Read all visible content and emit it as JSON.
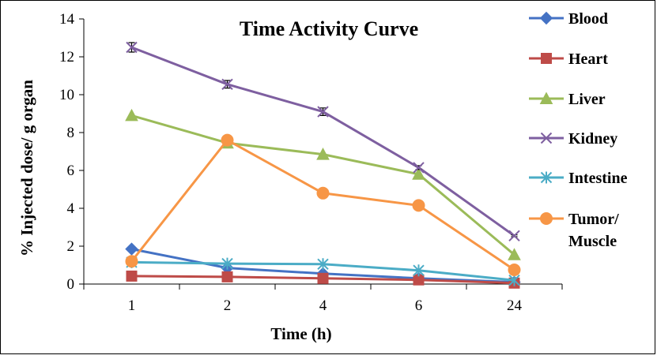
{
  "chart_data": {
    "type": "line",
    "title": "Time Activity Curve",
    "xlabel": "Time (h)",
    "ylabel": "% Injected dose/ g organ",
    "categories": [
      "1",
      "2",
      "4",
      "6",
      "24"
    ],
    "ylim": [
      0,
      14
    ],
    "yticks": [
      0,
      2,
      4,
      6,
      8,
      10,
      12,
      14
    ],
    "legend_position": "right",
    "grid": false,
    "series": [
      {
        "name": "Blood",
        "marker": "diamond",
        "color": "#4472c4",
        "values": [
          1.85,
          0.85,
          0.55,
          0.3,
          0.1
        ],
        "errors": [
          0,
          0,
          0,
          0,
          0
        ]
      },
      {
        "name": "Heart",
        "marker": "square",
        "color": "#be4b48",
        "values": [
          0.42,
          0.38,
          0.3,
          0.22,
          0.05
        ],
        "errors": [
          0,
          0,
          0,
          0,
          0
        ]
      },
      {
        "name": "Liver",
        "marker": "triangle",
        "color": "#9bbb59",
        "values": [
          8.9,
          7.45,
          6.85,
          5.8,
          1.55
        ],
        "errors": [
          0,
          0,
          0,
          0,
          0
        ]
      },
      {
        "name": "Kidney",
        "marker": "x",
        "color": "#7e5fa0",
        "values": [
          12.5,
          10.55,
          9.1,
          6.15,
          2.55
        ],
        "errors": [
          0.25,
          0.2,
          0.2,
          0.1,
          0.05
        ]
      },
      {
        "name": "Intestine",
        "marker": "asterisk",
        "color": "#4bacc6",
        "values": [
          1.15,
          1.08,
          1.05,
          0.72,
          0.2
        ],
        "errors": [
          0,
          0,
          0,
          0,
          0
        ]
      },
      {
        "name": "Tumor/ Muscle",
        "label_lines": [
          "Tumor/",
          "Muscle"
        ],
        "marker": "circle",
        "color": "#f79646",
        "values": [
          1.2,
          7.6,
          4.8,
          4.15,
          0.75
        ],
        "errors": [
          0,
          0,
          0,
          0,
          0
        ]
      }
    ]
  }
}
